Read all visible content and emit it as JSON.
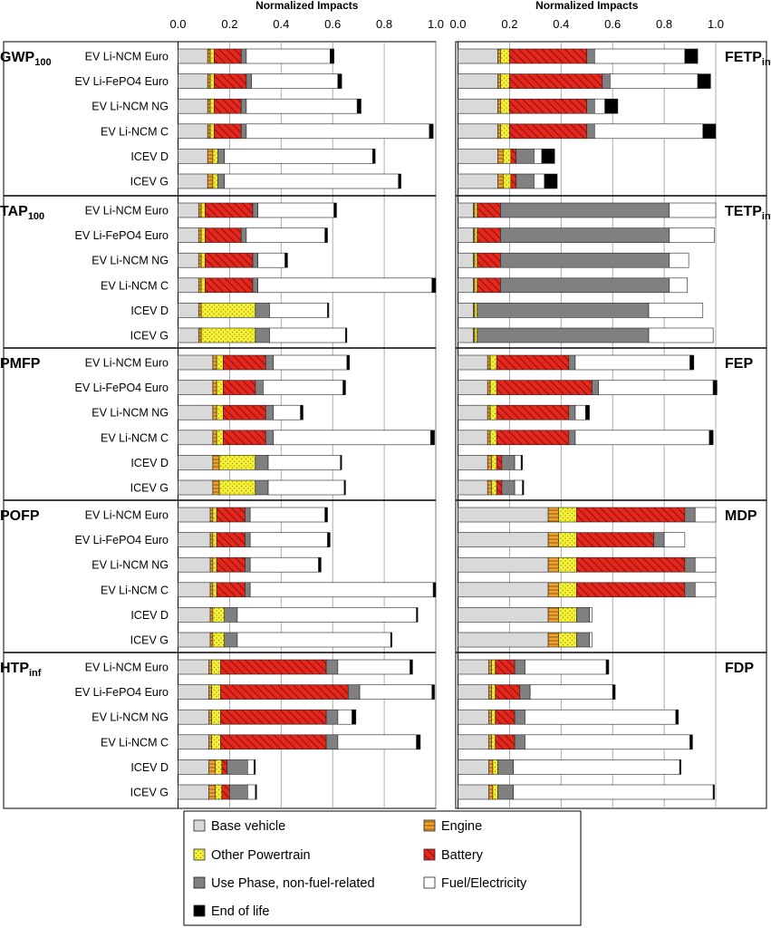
{
  "chart_data": {
    "type": "bar",
    "orientation": "horizontal",
    "stacked": true,
    "axis_title": "Normalized Impacts",
    "xlim": [
      0,
      1
    ],
    "ticks": [
      "0.0",
      "0.2",
      "0.4",
      "0.6",
      "0.8",
      "1.0"
    ],
    "categories": [
      "EV Li-NCM Euro",
      "EV Li-FePO4 Euro",
      "EV Li-NCM NG",
      "EV Li-NCM C",
      "ICEV D",
      "ICEV G"
    ],
    "components": [
      "Base vehicle",
      "Engine",
      "Other Powertrain",
      "Battery",
      "Use Phase, non-fuel-related",
      "Fuel/Electricity",
      "End of life"
    ],
    "legend": [
      {
        "label": "Base vehicle",
        "key": "base"
      },
      {
        "label": "Engine",
        "key": "engine"
      },
      {
        "label": "Other Powertrain",
        "key": "other"
      },
      {
        "label": "Battery",
        "key": "battery"
      },
      {
        "label": "Use Phase, non-fuel-related",
        "key": "use"
      },
      {
        "label": "Fuel/Electricity",
        "key": "fuel"
      },
      {
        "label": "End of life",
        "key": "eol"
      }
    ],
    "colors": {
      "base": "#d9d9d9",
      "engine": "#f0a030",
      "other": "#f5f032",
      "battery": "#e8251a",
      "use": "#808080",
      "fuel": "#ffffff",
      "eol": "#000000"
    },
    "panels": [
      {
        "metric": "GWP",
        "metric_sub": "100",
        "column": "left",
        "bars": [
          [
            0.115,
            0.01,
            0.015,
            0.105,
            0.02,
            0.325,
            0.015
          ],
          [
            0.115,
            0.01,
            0.015,
            0.125,
            0.02,
            0.335,
            0.015
          ],
          [
            0.115,
            0.01,
            0.015,
            0.105,
            0.02,
            0.43,
            0.015
          ],
          [
            0.115,
            0.01,
            0.015,
            0.105,
            0.02,
            0.71,
            0.015
          ],
          [
            0.115,
            0.02,
            0.02,
            0,
            0.025,
            0.575,
            0.01
          ],
          [
            0.115,
            0.02,
            0.02,
            0,
            0.025,
            0.675,
            0.01
          ]
        ]
      },
      {
        "metric": "TAP",
        "metric_sub": "100",
        "column": "left",
        "bars": [
          [
            0.08,
            0.01,
            0.015,
            0.185,
            0.02,
            0.295,
            0.01
          ],
          [
            0.08,
            0.01,
            0.015,
            0.14,
            0.02,
            0.305,
            0.01
          ],
          [
            0.08,
            0.01,
            0.015,
            0.185,
            0.02,
            0.105,
            0.01
          ],
          [
            0.08,
            0.01,
            0.015,
            0.185,
            0.02,
            0.675,
            0.015
          ],
          [
            0.08,
            0.01,
            0.21,
            0,
            0.055,
            0.225,
            0.005
          ],
          [
            0.08,
            0.01,
            0.21,
            0,
            0.055,
            0.295,
            0.005
          ]
        ]
      },
      {
        "metric": "PMFP",
        "metric_sub": "",
        "column": "left",
        "bars": [
          [
            0.135,
            0.015,
            0.025,
            0.165,
            0.03,
            0.285,
            0.01
          ],
          [
            0.135,
            0.015,
            0.025,
            0.125,
            0.03,
            0.31,
            0.01
          ],
          [
            0.135,
            0.015,
            0.025,
            0.165,
            0.03,
            0.105,
            0.01
          ],
          [
            0.135,
            0.015,
            0.025,
            0.165,
            0.03,
            0.61,
            0.015
          ],
          [
            0.135,
            0.025,
            0.14,
            0,
            0.05,
            0.28,
            0.005
          ],
          [
            0.135,
            0.025,
            0.14,
            0,
            0.05,
            0.295,
            0.005
          ]
        ]
      },
      {
        "metric": "POFP",
        "metric_sub": "",
        "column": "left",
        "bars": [
          [
            0.125,
            0.01,
            0.015,
            0.11,
            0.02,
            0.29,
            0.01
          ],
          [
            0.125,
            0.01,
            0.015,
            0.11,
            0.02,
            0.3,
            0.01
          ],
          [
            0.125,
            0.01,
            0.015,
            0.11,
            0.02,
            0.265,
            0.01
          ],
          [
            0.125,
            0.01,
            0.015,
            0.11,
            0.02,
            0.71,
            0.01
          ],
          [
            0.125,
            0.01,
            0.045,
            0,
            0.05,
            0.695,
            0.005
          ],
          [
            0.125,
            0.01,
            0.045,
            0,
            0.05,
            0.595,
            0.005
          ]
        ]
      },
      {
        "metric": "HTP",
        "metric_sub": "inf",
        "column": "left",
        "bars": [
          [
            0.12,
            0.01,
            0.035,
            0.41,
            0.045,
            0.28,
            0.01
          ],
          [
            0.12,
            0.01,
            0.035,
            0.495,
            0.045,
            0.28,
            0.01
          ],
          [
            0.12,
            0.01,
            0.035,
            0.41,
            0.045,
            0.055,
            0.015
          ],
          [
            0.12,
            0.01,
            0.035,
            0.41,
            0.045,
            0.305,
            0.015
          ],
          [
            0.12,
            0.025,
            0.025,
            0.02,
            0.08,
            0.025,
            0.005
          ],
          [
            0.12,
            0.025,
            0.025,
            0.03,
            0.07,
            0.03,
            0.005
          ]
        ]
      },
      {
        "metric": "FETP",
        "metric_sub": "inf",
        "column": "right",
        "bars": [
          [
            0.155,
            0.01,
            0.035,
            0.3,
            0.03,
            0.35,
            0.05
          ],
          [
            0.155,
            0.01,
            0.035,
            0.36,
            0.03,
            0.34,
            0.05
          ],
          [
            0.155,
            0.01,
            0.035,
            0.3,
            0.03,
            0.04,
            0.05
          ],
          [
            0.155,
            0.01,
            0.035,
            0.3,
            0.03,
            0.42,
            0.05
          ],
          [
            0.155,
            0.02,
            0.03,
            0.02,
            0.07,
            0.03,
            0.05
          ],
          [
            0.155,
            0.02,
            0.03,
            0.02,
            0.07,
            0.04,
            0.05
          ]
        ]
      },
      {
        "metric": "TETP",
        "metric_sub": "inf",
        "column": "right",
        "bars": [
          [
            0.06,
            0.005,
            0.01,
            0.09,
            0.655,
            0.18,
            0.0
          ],
          [
            0.06,
            0.005,
            0.01,
            0.09,
            0.655,
            0.175,
            0.0
          ],
          [
            0.06,
            0.005,
            0.01,
            0.09,
            0.655,
            0.075,
            0.0
          ],
          [
            0.06,
            0.005,
            0.01,
            0.09,
            0.655,
            0.07,
            0.0
          ],
          [
            0.06,
            0.005,
            0.01,
            0,
            0.665,
            0.21,
            0.0
          ],
          [
            0.06,
            0.005,
            0.01,
            0,
            0.665,
            0.25,
            0.0
          ]
        ]
      },
      {
        "metric": "FEP",
        "metric_sub": "",
        "column": "right",
        "bars": [
          [
            0.115,
            0.01,
            0.025,
            0.28,
            0.025,
            0.445,
            0.015
          ],
          [
            0.115,
            0.01,
            0.025,
            0.37,
            0.025,
            0.445,
            0.015
          ],
          [
            0.115,
            0.01,
            0.025,
            0.28,
            0.025,
            0.04,
            0.015
          ],
          [
            0.115,
            0.01,
            0.025,
            0.28,
            0.025,
            0.52,
            0.015
          ],
          [
            0.115,
            0.015,
            0.02,
            0.02,
            0.05,
            0.025,
            0.005
          ],
          [
            0.115,
            0.015,
            0.02,
            0.02,
            0.05,
            0.03,
            0.005
          ]
        ]
      },
      {
        "metric": "MDP",
        "metric_sub": "",
        "column": "right",
        "bars": [
          [
            0.35,
            0.04,
            0.07,
            0.42,
            0.04,
            0.08,
            0.0
          ],
          [
            0.35,
            0.04,
            0.07,
            0.3,
            0.04,
            0.08,
            0.0
          ],
          [
            0.35,
            0.04,
            0.07,
            0.42,
            0.04,
            0.08,
            0.0
          ],
          [
            0.35,
            0.04,
            0.07,
            0.42,
            0.04,
            0.08,
            0.0
          ],
          [
            0.35,
            0.04,
            0.07,
            0,
            0.05,
            0.01,
            0.0
          ],
          [
            0.35,
            0.04,
            0.07,
            0,
            0.05,
            0.01,
            0.0
          ]
        ]
      },
      {
        "metric": "FDP",
        "metric_sub": "",
        "column": "right",
        "bars": [
          [
            0.12,
            0.01,
            0.015,
            0.075,
            0.04,
            0.315,
            0.01
          ],
          [
            0.12,
            0.01,
            0.015,
            0.095,
            0.04,
            0.32,
            0.01
          ],
          [
            0.12,
            0.01,
            0.015,
            0.075,
            0.04,
            0.585,
            0.01
          ],
          [
            0.12,
            0.01,
            0.015,
            0.075,
            0.04,
            0.64,
            0.01
          ],
          [
            0.12,
            0.015,
            0.02,
            0,
            0.06,
            0.645,
            0.005
          ],
          [
            0.12,
            0.015,
            0.02,
            0,
            0.06,
            0.775,
            0.005
          ]
        ]
      }
    ]
  }
}
